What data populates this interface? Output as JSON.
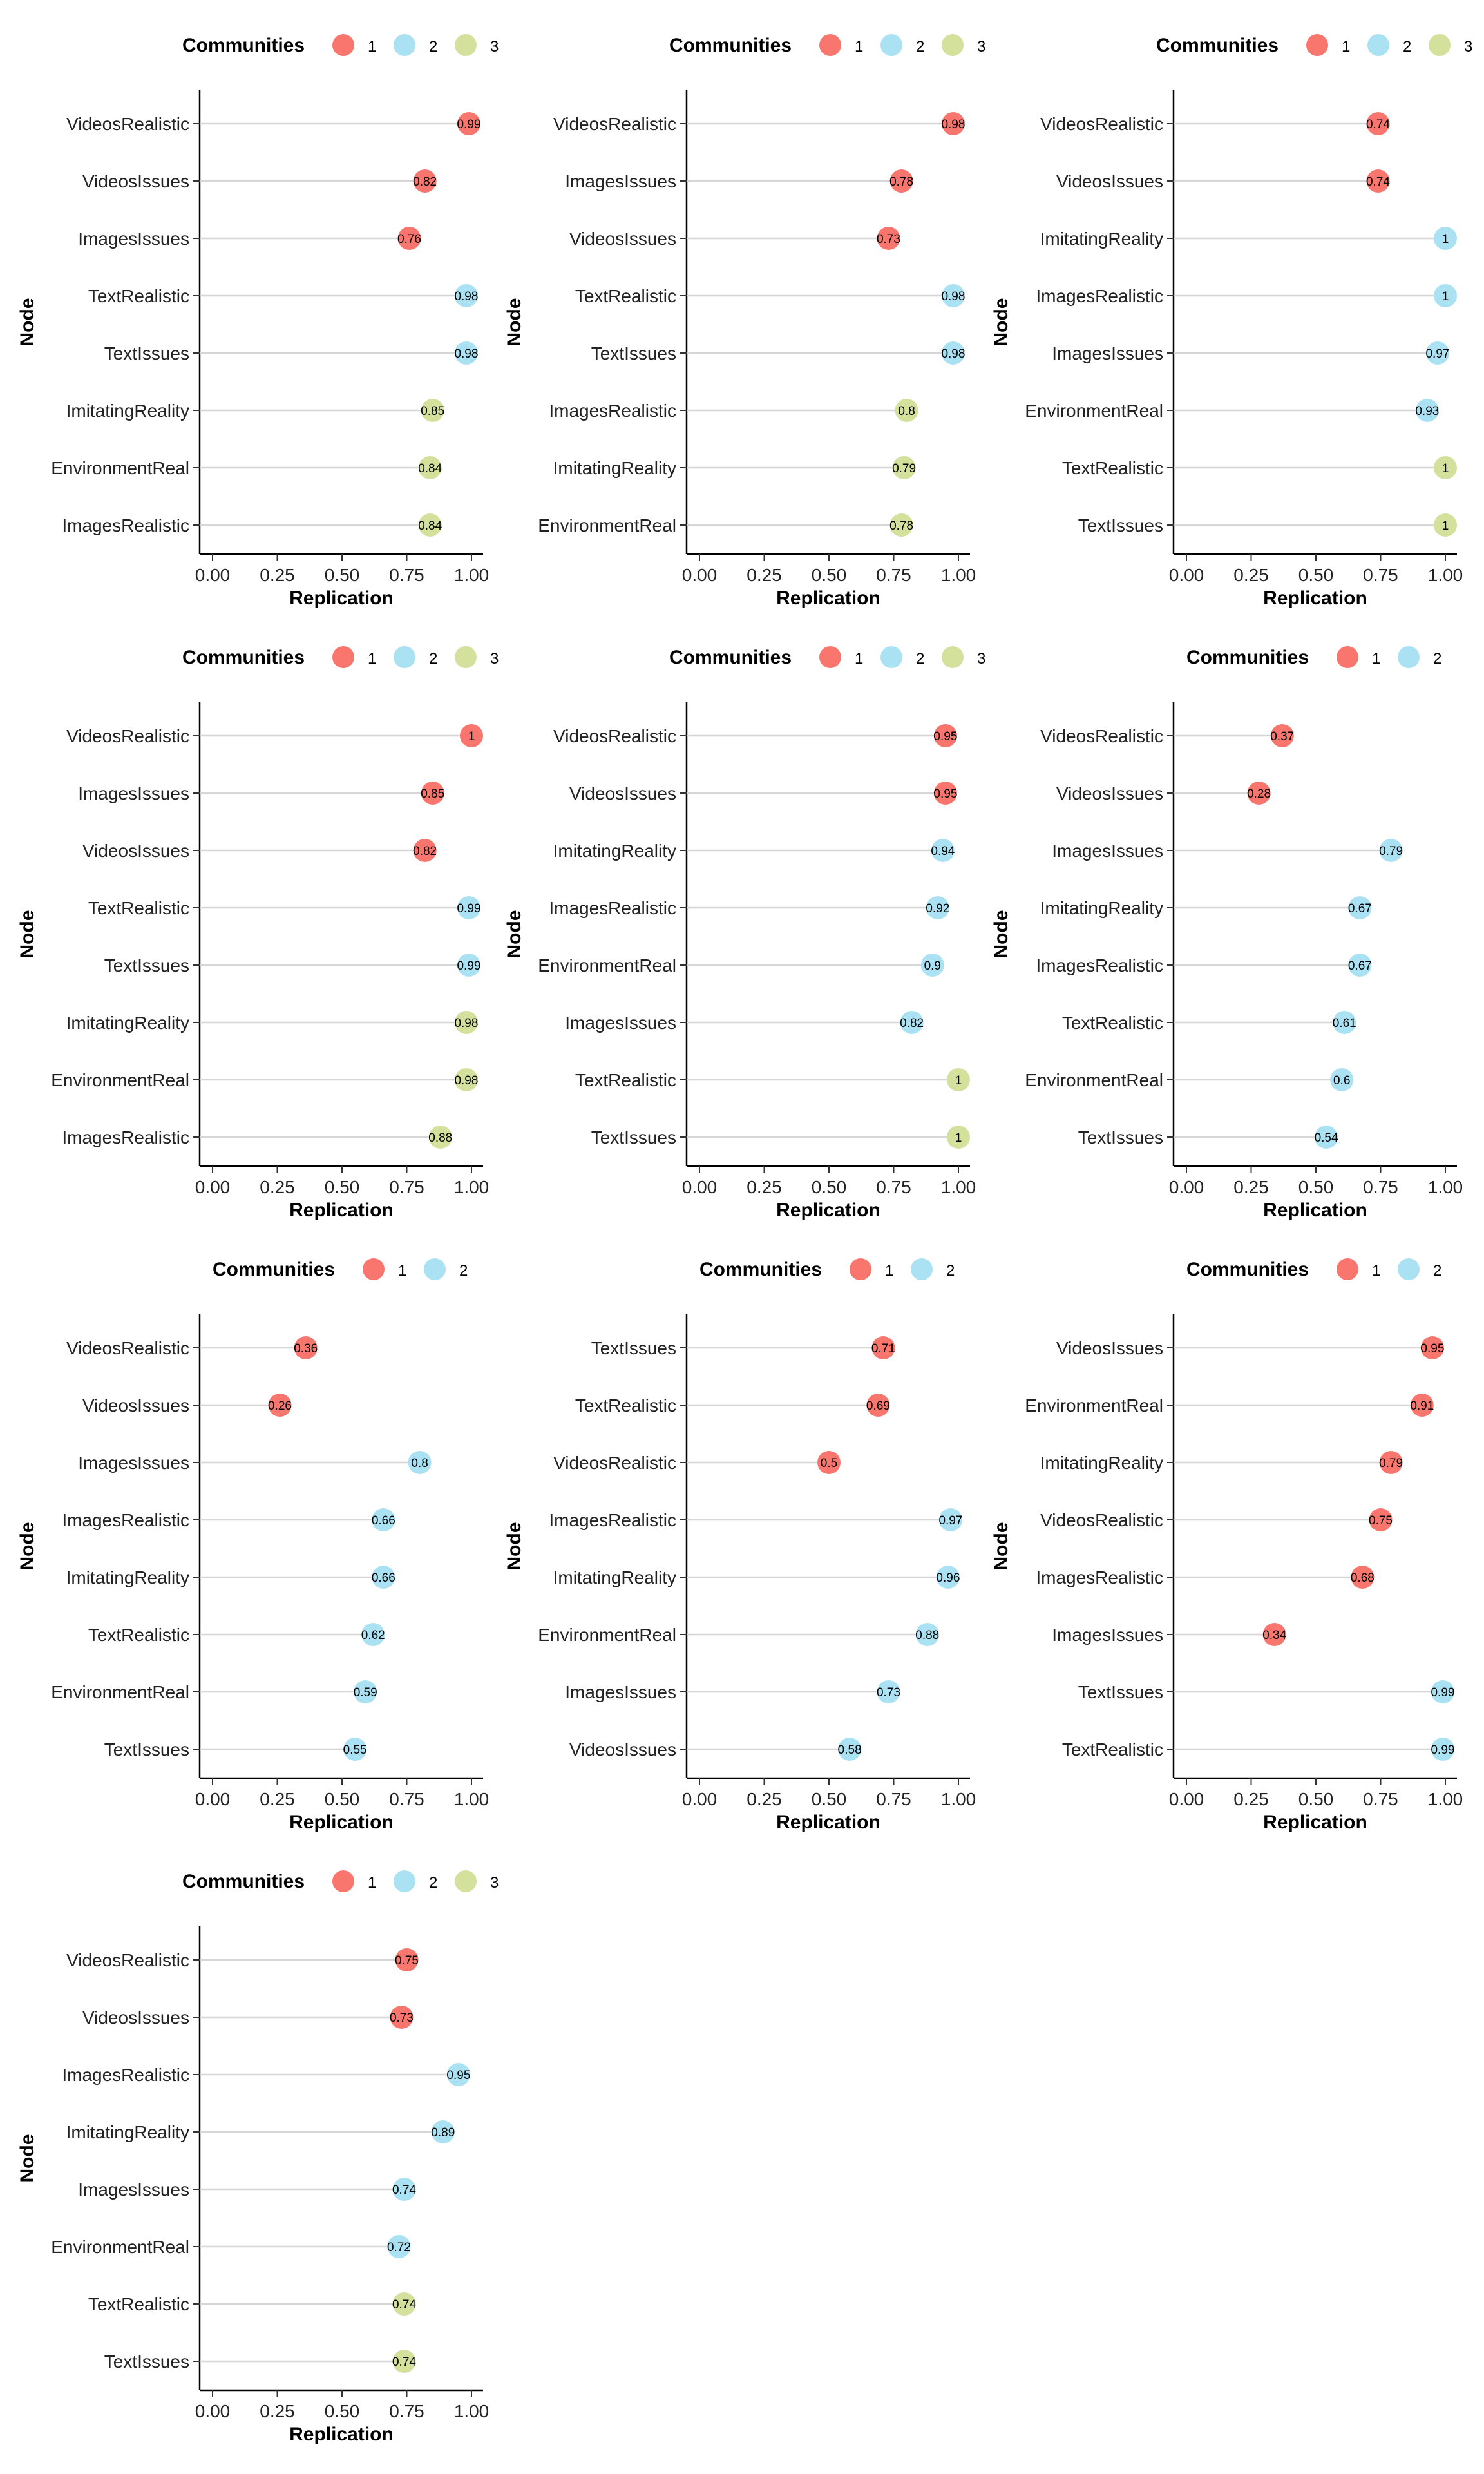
{
  "legend_title": "Communities",
  "axis": {
    "xlabel": "Replication",
    "ylabel": "Node",
    "xlim": [
      0,
      1
    ],
    "ticks": [
      "0.00",
      "0.25",
      "0.50",
      "0.75",
      "1.00"
    ]
  },
  "community_colors": {
    "1": "#F8766D",
    "2": "#ABE2F3",
    "3": "#D3E19C"
  },
  "chart_data": [
    {
      "type": "scatter",
      "communities": [
        "1",
        "2",
        "3"
      ],
      "points": [
        {
          "node": "VideosRealistic",
          "value": 0.99,
          "label": "0.99",
          "community": "1"
        },
        {
          "node": "VideosIssues",
          "value": 0.82,
          "label": "0.82",
          "community": "1"
        },
        {
          "node": "ImagesIssues",
          "value": 0.76,
          "label": "0.76",
          "community": "1"
        },
        {
          "node": "TextRealistic",
          "value": 0.98,
          "label": "0.98",
          "community": "2"
        },
        {
          "node": "TextIssues",
          "value": 0.98,
          "label": "0.98",
          "community": "2"
        },
        {
          "node": "ImitatingReality",
          "value": 0.85,
          "label": "0.85",
          "community": "3"
        },
        {
          "node": "EnvironmentReal",
          "value": 0.84,
          "label": "0.84",
          "community": "3"
        },
        {
          "node": "ImagesRealistic",
          "value": 0.84,
          "label": "0.84",
          "community": "3"
        }
      ]
    },
    {
      "type": "scatter",
      "communities": [
        "1",
        "2",
        "3"
      ],
      "points": [
        {
          "node": "VideosRealistic",
          "value": 0.98,
          "label": "0.98",
          "community": "1"
        },
        {
          "node": "ImagesIssues",
          "value": 0.78,
          "label": "0.78",
          "community": "1"
        },
        {
          "node": "VideosIssues",
          "value": 0.73,
          "label": "0.73",
          "community": "1"
        },
        {
          "node": "TextRealistic",
          "value": 0.98,
          "label": "0.98",
          "community": "2"
        },
        {
          "node": "TextIssues",
          "value": 0.98,
          "label": "0.98",
          "community": "2"
        },
        {
          "node": "ImagesRealistic",
          "value": 0.8,
          "label": "0.8",
          "community": "3"
        },
        {
          "node": "ImitatingReality",
          "value": 0.79,
          "label": "0.79",
          "community": "3"
        },
        {
          "node": "EnvironmentReal",
          "value": 0.78,
          "label": "0.78",
          "community": "3"
        }
      ]
    },
    {
      "type": "scatter",
      "communities": [
        "1",
        "2",
        "3"
      ],
      "points": [
        {
          "node": "VideosRealistic",
          "value": 0.74,
          "label": "0.74",
          "community": "1"
        },
        {
          "node": "VideosIssues",
          "value": 0.74,
          "label": "0.74",
          "community": "1"
        },
        {
          "node": "ImitatingReality",
          "value": 1,
          "label": "1",
          "community": "2"
        },
        {
          "node": "ImagesRealistic",
          "value": 1,
          "label": "1",
          "community": "2"
        },
        {
          "node": "ImagesIssues",
          "value": 0.97,
          "label": "0.97",
          "community": "2"
        },
        {
          "node": "EnvironmentReal",
          "value": 0.93,
          "label": "0.93",
          "community": "2"
        },
        {
          "node": "TextRealistic",
          "value": 1,
          "label": "1",
          "community": "3"
        },
        {
          "node": "TextIssues",
          "value": 1,
          "label": "1",
          "community": "3"
        }
      ]
    },
    {
      "type": "scatter",
      "communities": [
        "1",
        "2",
        "3"
      ],
      "points": [
        {
          "node": "VideosRealistic",
          "value": 1,
          "label": "1",
          "community": "1"
        },
        {
          "node": "ImagesIssues",
          "value": 0.85,
          "label": "0.85",
          "community": "1"
        },
        {
          "node": "VideosIssues",
          "value": 0.82,
          "label": "0.82",
          "community": "1"
        },
        {
          "node": "TextRealistic",
          "value": 0.99,
          "label": "0.99",
          "community": "2"
        },
        {
          "node": "TextIssues",
          "value": 0.99,
          "label": "0.99",
          "community": "2"
        },
        {
          "node": "ImitatingReality",
          "value": 0.98,
          "label": "0.98",
          "community": "3"
        },
        {
          "node": "EnvironmentReal",
          "value": 0.98,
          "label": "0.98",
          "community": "3"
        },
        {
          "node": "ImagesRealistic",
          "value": 0.88,
          "label": "0.88",
          "community": "3"
        }
      ]
    },
    {
      "type": "scatter",
      "communities": [
        "1",
        "2",
        "3"
      ],
      "points": [
        {
          "node": "VideosRealistic",
          "value": 0.95,
          "label": "0.95",
          "community": "1"
        },
        {
          "node": "VideosIssues",
          "value": 0.95,
          "label": "0.95",
          "community": "1"
        },
        {
          "node": "ImitatingReality",
          "value": 0.94,
          "label": "0.94",
          "community": "2"
        },
        {
          "node": "ImagesRealistic",
          "value": 0.92,
          "label": "0.92",
          "community": "2"
        },
        {
          "node": "EnvironmentReal",
          "value": 0.9,
          "label": "0.9",
          "community": "2"
        },
        {
          "node": "ImagesIssues",
          "value": 0.82,
          "label": "0.82",
          "community": "2"
        },
        {
          "node": "TextRealistic",
          "value": 1,
          "label": "1",
          "community": "3"
        },
        {
          "node": "TextIssues",
          "value": 1,
          "label": "1",
          "community": "3"
        }
      ]
    },
    {
      "type": "scatter",
      "communities": [
        "1",
        "2"
      ],
      "points": [
        {
          "node": "VideosRealistic",
          "value": 0.37,
          "label": "0.37",
          "community": "1"
        },
        {
          "node": "VideosIssues",
          "value": 0.28,
          "label": "0.28",
          "community": "1"
        },
        {
          "node": "ImagesIssues",
          "value": 0.79,
          "label": "0.79",
          "community": "2"
        },
        {
          "node": "ImitatingReality",
          "value": 0.67,
          "label": "0.67",
          "community": "2"
        },
        {
          "node": "ImagesRealistic",
          "value": 0.67,
          "label": "0.67",
          "community": "2"
        },
        {
          "node": "TextRealistic",
          "value": 0.61,
          "label": "0.61",
          "community": "2"
        },
        {
          "node": "EnvironmentReal",
          "value": 0.6,
          "label": "0.6",
          "community": "2"
        },
        {
          "node": "TextIssues",
          "value": 0.54,
          "label": "0.54",
          "community": "2"
        }
      ]
    },
    {
      "type": "scatter",
      "communities": [
        "1",
        "2"
      ],
      "points": [
        {
          "node": "VideosRealistic",
          "value": 0.36,
          "label": "0.36",
          "community": "1"
        },
        {
          "node": "VideosIssues",
          "value": 0.26,
          "label": "0.26",
          "community": "1"
        },
        {
          "node": "ImagesIssues",
          "value": 0.8,
          "label": "0.8",
          "community": "2"
        },
        {
          "node": "ImagesRealistic",
          "value": 0.66,
          "label": "0.66",
          "community": "2"
        },
        {
          "node": "ImitatingReality",
          "value": 0.66,
          "label": "0.66",
          "community": "2"
        },
        {
          "node": "TextRealistic",
          "value": 0.62,
          "label": "0.62",
          "community": "2"
        },
        {
          "node": "EnvironmentReal",
          "value": 0.59,
          "label": "0.59",
          "community": "2"
        },
        {
          "node": "TextIssues",
          "value": 0.55,
          "label": "0.55",
          "community": "2"
        }
      ]
    },
    {
      "type": "scatter",
      "communities": [
        "1",
        "2"
      ],
      "points": [
        {
          "node": "TextIssues",
          "value": 0.71,
          "label": "0.71",
          "community": "1"
        },
        {
          "node": "TextRealistic",
          "value": 0.69,
          "label": "0.69",
          "community": "1"
        },
        {
          "node": "VideosRealistic",
          "value": 0.5,
          "label": "0.5",
          "community": "1"
        },
        {
          "node": "ImagesRealistic",
          "value": 0.97,
          "label": "0.97",
          "community": "2"
        },
        {
          "node": "ImitatingReality",
          "value": 0.96,
          "label": "0.96",
          "community": "2"
        },
        {
          "node": "EnvironmentReal",
          "value": 0.88,
          "label": "0.88",
          "community": "2"
        },
        {
          "node": "ImagesIssues",
          "value": 0.73,
          "label": "0.73",
          "community": "2"
        },
        {
          "node": "VideosIssues",
          "value": 0.58,
          "label": "0.58",
          "community": "2"
        }
      ]
    },
    {
      "type": "scatter",
      "communities": [
        "1",
        "2"
      ],
      "points": [
        {
          "node": "VideosIssues",
          "value": 0.95,
          "label": "0.95",
          "community": "1"
        },
        {
          "node": "EnvironmentReal",
          "value": 0.91,
          "label": "0.91",
          "community": "1"
        },
        {
          "node": "ImitatingReality",
          "value": 0.79,
          "label": "0.79",
          "community": "1"
        },
        {
          "node": "VideosRealistic",
          "value": 0.75,
          "label": "0.75",
          "community": "1"
        },
        {
          "node": "ImagesRealistic",
          "value": 0.68,
          "label": "0.68",
          "community": "1"
        },
        {
          "node": "ImagesIssues",
          "value": 0.34,
          "label": "0.34",
          "community": "1"
        },
        {
          "node": "TextIssues",
          "value": 0.99,
          "label": "0.99",
          "community": "2"
        },
        {
          "node": "TextRealistic",
          "value": 0.99,
          "label": "0.99",
          "community": "2"
        }
      ]
    },
    {
      "type": "scatter",
      "communities": [
        "1",
        "2",
        "3"
      ],
      "points": [
        {
          "node": "VideosRealistic",
          "value": 0.75,
          "label": "0.75",
          "community": "1"
        },
        {
          "node": "VideosIssues",
          "value": 0.73,
          "label": "0.73",
          "community": "1"
        },
        {
          "node": "ImagesRealistic",
          "value": 0.95,
          "label": "0.95",
          "community": "2"
        },
        {
          "node": "ImitatingReality",
          "value": 0.89,
          "label": "0.89",
          "community": "2"
        },
        {
          "node": "ImagesIssues",
          "value": 0.74,
          "label": "0.74",
          "community": "2"
        },
        {
          "node": "EnvironmentReal",
          "value": 0.72,
          "label": "0.72",
          "community": "2"
        },
        {
          "node": "TextRealistic",
          "value": 0.74,
          "label": "0.74",
          "community": "3"
        },
        {
          "node": "TextIssues",
          "value": 0.74,
          "label": "0.74",
          "community": "3"
        }
      ]
    }
  ]
}
